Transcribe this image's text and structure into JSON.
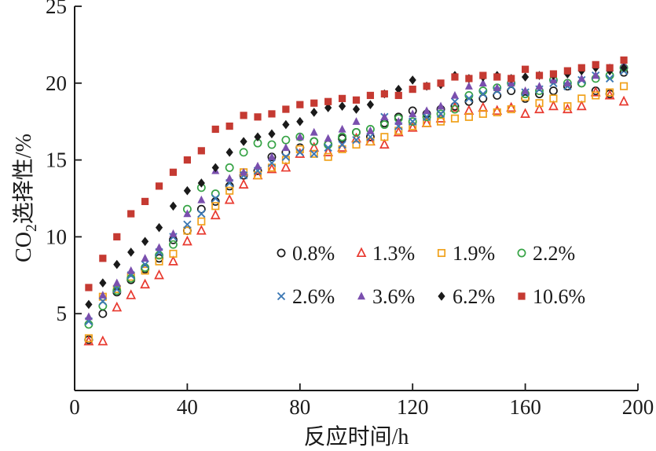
{
  "chart_data": {
    "type": "scatter",
    "title": "",
    "xlabel": "反应时间/h",
    "ylabel_pre": "CO",
    "ylabel_sub": "2",
    "ylabel_post": "选择性/%",
    "xlim": [
      0,
      200
    ],
    "ylim": [
      0,
      25
    ],
    "xticks": [
      0,
      40,
      80,
      120,
      160,
      200
    ],
    "yticks": [
      0,
      5,
      10,
      15,
      20,
      25
    ],
    "grid": false,
    "legend_position": "inside-lower-right",
    "axis_color": "#1a1a1a",
    "x": [
      5,
      10,
      15,
      20,
      25,
      30,
      35,
      40,
      45,
      50,
      55,
      60,
      65,
      70,
      75,
      80,
      85,
      90,
      95,
      100,
      105,
      110,
      115,
      120,
      125,
      130,
      135,
      140,
      145,
      150,
      155,
      160,
      165,
      170,
      175,
      180,
      185,
      190,
      195
    ],
    "series": [
      {
        "name": "0.8%",
        "marker": "circle-open",
        "color": "#1a1a1a",
        "values": [
          3.3,
          5.0,
          6.4,
          7.2,
          7.9,
          8.6,
          9.8,
          10.4,
          11.8,
          12.3,
          13.3,
          14.0,
          14.3,
          15.2,
          15.5,
          15.8,
          16.2,
          16.0,
          16.4,
          16.8,
          16.5,
          17.4,
          17.8,
          18.2,
          18.0,
          18.3,
          18.5,
          18.8,
          19.0,
          19.2,
          19.5,
          19.0,
          19.3,
          19.5,
          19.8,
          20.0,
          19.5,
          19.3,
          20.7
        ]
      },
      {
        "name": "1.3%",
        "marker": "triangle-open",
        "color": "#e8392f",
        "values": [
          3.2,
          3.2,
          5.4,
          6.2,
          6.9,
          7.5,
          8.4,
          9.7,
          10.4,
          11.4,
          12.4,
          13.4,
          14.0,
          14.4,
          14.5,
          15.4,
          15.8,
          15.5,
          15.8,
          16.4,
          16.2,
          16.0,
          16.8,
          17.1,
          17.4,
          17.7,
          18.4,
          18.2,
          18.4,
          18.2,
          18.4,
          18.0,
          18.3,
          18.5,
          18.3,
          18.5,
          19.4,
          19.2,
          18.8
        ]
      },
      {
        "name": "1.9%",
        "marker": "square-open",
        "color": "#f0a11a",
        "values": [
          3.4,
          6.1,
          6.6,
          7.4,
          7.8,
          8.4,
          8.9,
          10.4,
          11.0,
          12.0,
          13.0,
          14.2,
          14.0,
          14.5,
          15.0,
          15.7,
          15.4,
          15.2,
          15.7,
          16.0,
          16.2,
          16.5,
          16.9,
          17.2,
          17.4,
          17.5,
          17.7,
          17.8,
          18.0,
          18.1,
          18.3,
          19.1,
          18.7,
          19.0,
          18.5,
          19.0,
          19.2,
          19.4,
          19.8
        ]
      },
      {
        "name": "2.2%",
        "marker": "circle-open",
        "color": "#36a345",
        "values": [
          4.3,
          5.5,
          6.5,
          7.3,
          8.0,
          8.8,
          9.5,
          11.8,
          13.2,
          12.8,
          14.5,
          15.5,
          16.1,
          16.0,
          16.3,
          16.5,
          16.2,
          16.0,
          16.5,
          16.8,
          17.0,
          17.3,
          17.7,
          17.5,
          17.8,
          18.0,
          18.3,
          19.2,
          19.5,
          19.7,
          20.0,
          19.3,
          19.5,
          20.2,
          20.0,
          20.0,
          20.3,
          20.5,
          21.0
        ]
      },
      {
        "name": "2.6%",
        "marker": "x-cross",
        "color": "#3c78b4",
        "values": [
          4.5,
          5.8,
          6.6,
          7.5,
          8.2,
          9.0,
          10.0,
          10.8,
          11.5,
          12.5,
          13.5,
          14.0,
          14.3,
          14.8,
          15.2,
          15.5,
          15.4,
          15.8,
          16.0,
          16.3,
          16.5,
          17.8,
          17.2,
          17.5,
          17.8,
          18.0,
          18.8,
          19.0,
          19.3,
          19.5,
          19.8,
          19.4,
          19.6,
          20.0,
          19.8,
          20.2,
          20.5,
          20.3,
          20.8
        ]
      },
      {
        "name": "3.6%",
        "marker": "triangle-filled",
        "color": "#7a4fae",
        "values": [
          4.8,
          6.2,
          7.0,
          7.8,
          8.6,
          9.3,
          10.2,
          11.5,
          12.4,
          14.3,
          13.8,
          14.2,
          14.6,
          15.2,
          15.8,
          16.5,
          16.8,
          16.4,
          17.0,
          17.5,
          16.9,
          17.8,
          17.5,
          18.0,
          18.2,
          18.5,
          19.2,
          19.8,
          20.0,
          19.7,
          20.0,
          19.5,
          19.8,
          20.2,
          20.0,
          20.3,
          20.5,
          21.0,
          21.2
        ]
      },
      {
        "name": "6.2%",
        "marker": "diamond-filled",
        "color": "#1a1a1a",
        "values": [
          5.6,
          7.0,
          8.2,
          9.0,
          9.7,
          10.6,
          12.0,
          13.0,
          13.5,
          14.5,
          15.5,
          16.2,
          16.5,
          16.7,
          17.3,
          17.5,
          18.1,
          18.4,
          18.5,
          18.3,
          18.6,
          19.3,
          19.6,
          20.2,
          19.8,
          19.9,
          20.5,
          20.3,
          20.4,
          20.5,
          20.3,
          20.4,
          20.5,
          20.5,
          20.6,
          20.8,
          21.0,
          20.8,
          21.0
        ]
      },
      {
        "name": "10.6%",
        "marker": "square-filled",
        "color": "#c53a32",
        "values": [
          6.7,
          8.6,
          10.0,
          11.5,
          12.3,
          13.3,
          14.2,
          15.0,
          15.6,
          17.0,
          17.2,
          17.9,
          17.8,
          18.0,
          18.3,
          18.6,
          18.7,
          18.8,
          19.0,
          18.9,
          19.2,
          19.3,
          19.2,
          19.6,
          19.8,
          20.0,
          20.4,
          20.3,
          20.5,
          20.4,
          20.3,
          20.9,
          20.5,
          20.6,
          20.8,
          21.0,
          21.2,
          21.0,
          21.5
        ]
      }
    ]
  }
}
